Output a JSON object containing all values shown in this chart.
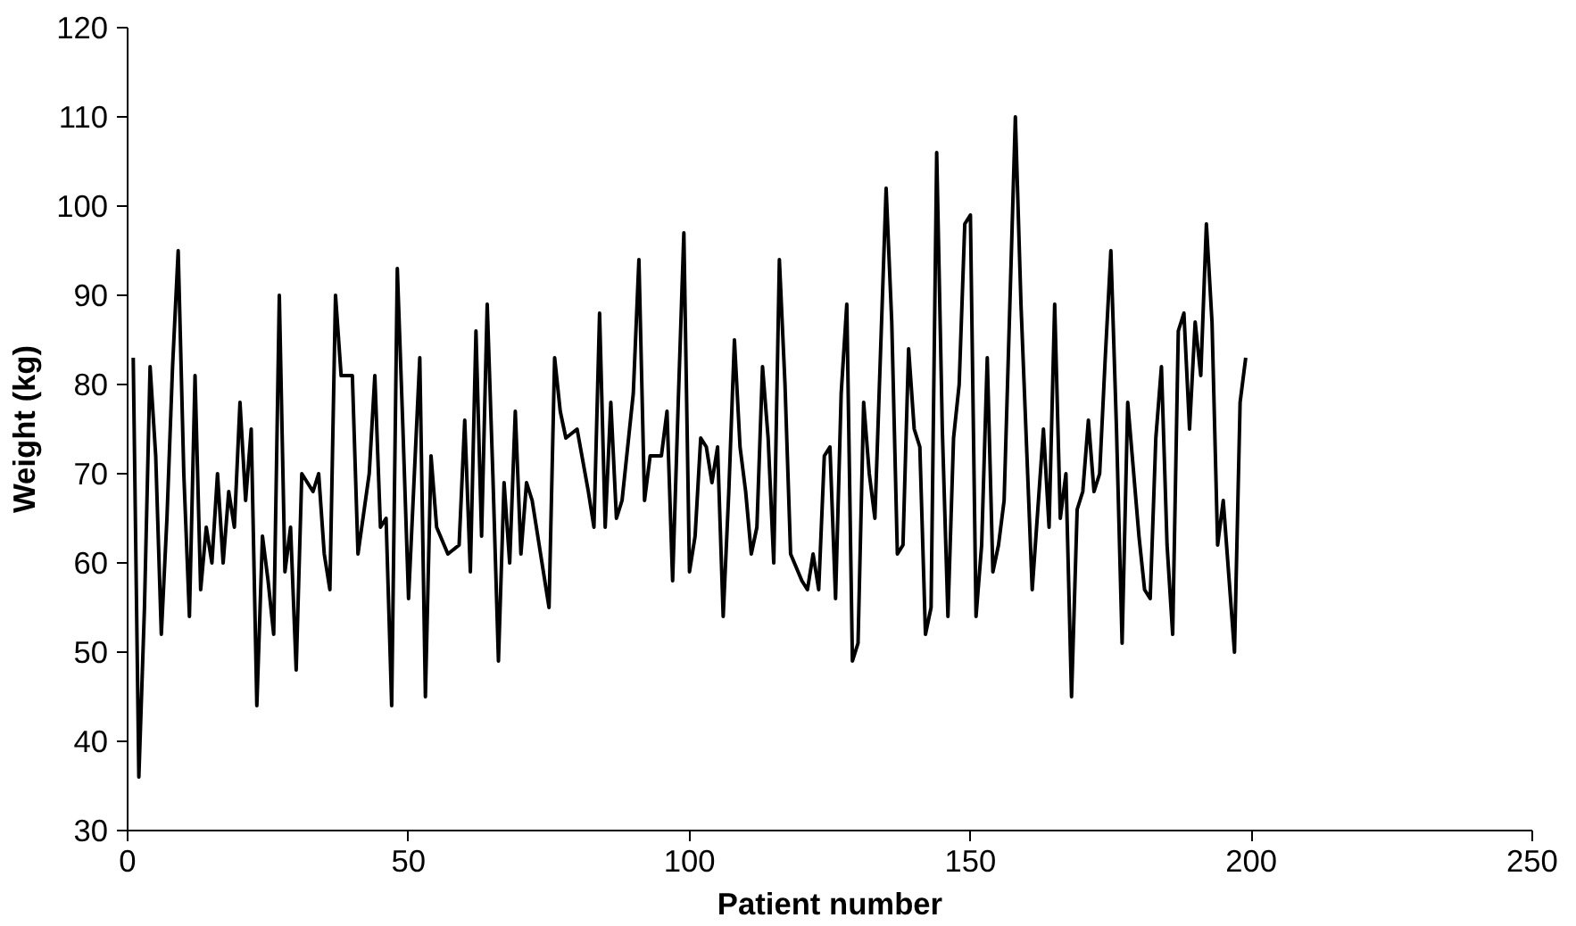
{
  "chart_data": {
    "type": "line",
    "xlabel": "Patient number",
    "ylabel": "Weight (kg)",
    "x": [
      1,
      2,
      3,
      4,
      5,
      6,
      7,
      8,
      9,
      10,
      11,
      12,
      13,
      14,
      15,
      16,
      17,
      18,
      19,
      20,
      21,
      22,
      23,
      24,
      25,
      26,
      27,
      28,
      29,
      30,
      31,
      33,
      34,
      35,
      36,
      37,
      38,
      40,
      41,
      43,
      44,
      45,
      46,
      47,
      48,
      49,
      50,
      52,
      53,
      54,
      55,
      57,
      59,
      60,
      61,
      62,
      63,
      64,
      65,
      66,
      67,
      68,
      69,
      70,
      71,
      72,
      74,
      75,
      76,
      77,
      78,
      80,
      82,
      83,
      84,
      85,
      86,
      87,
      88,
      90,
      91,
      92,
      93,
      95,
      96,
      97,
      98,
      99,
      100,
      101,
      102,
      103,
      104,
      105,
      106,
      107,
      108,
      109,
      110,
      111,
      112,
      113,
      114,
      115,
      116,
      117,
      118,
      120,
      121,
      122,
      123,
      124,
      125,
      126,
      127,
      128,
      129,
      130,
      131,
      132,
      133,
      135,
      136,
      137,
      138,
      139,
      140,
      141,
      142,
      143,
      144,
      145,
      146,
      147,
      148,
      149,
      150,
      151,
      152,
      153,
      154,
      155,
      156,
      158,
      159,
      161,
      163,
      164,
      165,
      166,
      167,
      168,
      169,
      170,
      171,
      172,
      173,
      174,
      175,
      176,
      177,
      178,
      180,
      181,
      182,
      183,
      184,
      185,
      186,
      187,
      188,
      189,
      190,
      191,
      192,
      193,
      194,
      195,
      197,
      198,
      199
    ],
    "series": [
      {
        "color": "#000000",
        "values": [
          83,
          36,
          55,
          82,
          72,
          52,
          65,
          82,
          95,
          70,
          54,
          81,
          57,
          64,
          60,
          70,
          60,
          68,
          64,
          78,
          67,
          75,
          44,
          63,
          58,
          52,
          90,
          59,
          64,
          48,
          70,
          68,
          70,
          61,
          57,
          90,
          81,
          81,
          61,
          70,
          81,
          64,
          65,
          44,
          93,
          75,
          56,
          83,
          45,
          72,
          64,
          61,
          62,
          76,
          59,
          86,
          63,
          89,
          70,
          49,
          69,
          60,
          77,
          61,
          69,
          67,
          59,
          55,
          83,
          77,
          74,
          75,
          68,
          64,
          88,
          64,
          78,
          65,
          67,
          79,
          94,
          67,
          72,
          72,
          77,
          58,
          78,
          97,
          59,
          63,
          74,
          73,
          69,
          73,
          54,
          68,
          85,
          73,
          68,
          61,
          64,
          82,
          74,
          60,
          94,
          80,
          61,
          58,
          57,
          61,
          57,
          72,
          73,
          56,
          79,
          89,
          49,
          51,
          78,
          70,
          65,
          102,
          87,
          61,
          62,
          84,
          75,
          73,
          52,
          55,
          106,
          75,
          54,
          74,
          80,
          98,
          99,
          54,
          62,
          83,
          59,
          62,
          67,
          110,
          89,
          57,
          75,
          64,
          89,
          65,
          70,
          45,
          66,
          68,
          76,
          68,
          70,
          83,
          95,
          75,
          51,
          78,
          63,
          57,
          56,
          74,
          82,
          62,
          52,
          86,
          88,
          75,
          87,
          81,
          98,
          87,
          62,
          67,
          50,
          78,
          83
        ]
      }
    ],
    "xlim": [
      0,
      250
    ],
    "xticks": [
      0,
      50,
      100,
      150,
      200,
      250
    ],
    "ylim": [
      30,
      120
    ],
    "yticks": [
      30,
      40,
      50,
      60,
      70,
      80,
      90,
      100,
      110,
      120
    ],
    "grid": false,
    "marker": "none",
    "line_style": "solid"
  }
}
